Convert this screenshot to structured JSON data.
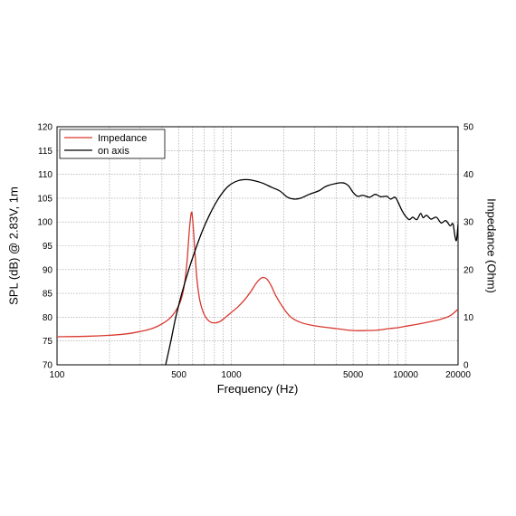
{
  "chart_data": {
    "type": "line",
    "xlabel": "Frequency (Hz)",
    "ylabel_left": "SPL (dB) @ 2.83V, 1m",
    "ylabel_right": "Impedance (Ohm)",
    "x_scale": "log",
    "xlim": [
      100,
      20000
    ],
    "ylim_left": [
      70,
      120
    ],
    "ylim_right": [
      0,
      50
    ],
    "x_ticks": [
      {
        "value": 100,
        "label": "100"
      },
      {
        "value": 500,
        "label": "500"
      },
      {
        "value": 1000,
        "label": "1000"
      },
      {
        "value": 5000,
        "label": "5000"
      },
      {
        "value": 10000,
        "label": "10000"
      },
      {
        "value": 20000,
        "label": "20000"
      }
    ],
    "y_ticks_left": [
      {
        "value": 70,
        "label": "70"
      },
      {
        "value": 75,
        "label": "75"
      },
      {
        "value": 80,
        "label": "80"
      },
      {
        "value": 85,
        "label": "85"
      },
      {
        "value": 90,
        "label": "90"
      },
      {
        "value": 95,
        "label": "95"
      },
      {
        "value": 100,
        "label": "100"
      },
      {
        "value": 105,
        "label": "105"
      },
      {
        "value": 110,
        "label": "110"
      },
      {
        "value": 115,
        "label": "115"
      },
      {
        "value": 120,
        "label": "120"
      }
    ],
    "y_ticks_right": [
      {
        "value": 0,
        "label": "0"
      },
      {
        "value": 10,
        "label": "10"
      },
      {
        "value": 20,
        "label": "20"
      },
      {
        "value": 30,
        "label": "30"
      },
      {
        "value": 40,
        "label": "40"
      },
      {
        "value": 50,
        "label": "50"
      }
    ],
    "grid": true,
    "legend_position": "top-left",
    "series": [
      {
        "name": "Impedance",
        "axis": "right",
        "color": "#d9382f",
        "points": [
          [
            100,
            5.9
          ],
          [
            150,
            6.0
          ],
          [
            200,
            6.2
          ],
          [
            250,
            6.5
          ],
          [
            300,
            7.0
          ],
          [
            350,
            7.6
          ],
          [
            400,
            8.6
          ],
          [
            450,
            10.0
          ],
          [
            500,
            12.5
          ],
          [
            530,
            15.5
          ],
          [
            555,
            21.0
          ],
          [
            575,
            28.5
          ],
          [
            590,
            32.0
          ],
          [
            600,
            30.5
          ],
          [
            615,
            25.0
          ],
          [
            635,
            18.0
          ],
          [
            660,
            13.5
          ],
          [
            700,
            10.5
          ],
          [
            750,
            9.1
          ],
          [
            800,
            8.8
          ],
          [
            850,
            9.0
          ],
          [
            900,
            9.6
          ],
          [
            1000,
            11.0
          ],
          [
            1100,
            12.3
          ],
          [
            1200,
            13.8
          ],
          [
            1300,
            15.5
          ],
          [
            1400,
            17.3
          ],
          [
            1500,
            18.3
          ],
          [
            1600,
            18.0
          ],
          [
            1700,
            16.5
          ],
          [
            1800,
            14.5
          ],
          [
            2000,
            11.8
          ],
          [
            2200,
            10.0
          ],
          [
            2500,
            8.9
          ],
          [
            3000,
            8.2
          ],
          [
            4000,
            7.6
          ],
          [
            5000,
            7.2
          ],
          [
            6000,
            7.2
          ],
          [
            7000,
            7.3
          ],
          [
            8000,
            7.6
          ],
          [
            9000,
            7.8
          ],
          [
            10000,
            8.1
          ],
          [
            12000,
            8.6
          ],
          [
            14000,
            9.1
          ],
          [
            16000,
            9.6
          ],
          [
            18000,
            10.3
          ],
          [
            20000,
            11.7
          ]
        ]
      },
      {
        "name": "on axis",
        "axis": "left",
        "color": "#000000",
        "points": [
          [
            420,
            70
          ],
          [
            450,
            75
          ],
          [
            480,
            80
          ],
          [
            520,
            85
          ],
          [
            570,
            90
          ],
          [
            620,
            94
          ],
          [
            680,
            98
          ],
          [
            750,
            101.5
          ],
          [
            830,
            104.5
          ],
          [
            920,
            106.8
          ],
          [
            1000,
            108
          ],
          [
            1100,
            108.7
          ],
          [
            1200,
            108.9
          ],
          [
            1300,
            108.8
          ],
          [
            1500,
            108.2
          ],
          [
            1700,
            107.3
          ],
          [
            1900,
            106.5
          ],
          [
            2100,
            105.2
          ],
          [
            2300,
            104.8
          ],
          [
            2500,
            105.0
          ],
          [
            2800,
            105.8
          ],
          [
            3200,
            106.6
          ],
          [
            3500,
            107.5
          ],
          [
            4000,
            108.1
          ],
          [
            4400,
            108.2
          ],
          [
            4700,
            107.6
          ],
          [
            5000,
            106.2
          ],
          [
            5300,
            105.4
          ],
          [
            5700,
            105.6
          ],
          [
            6200,
            105.2
          ],
          [
            6700,
            105.8
          ],
          [
            7200,
            105.3
          ],
          [
            7800,
            105.4
          ],
          [
            8200,
            104.8
          ],
          [
            8700,
            105.2
          ],
          [
            9100,
            104.0
          ],
          [
            9500,
            102.5
          ],
          [
            10000,
            101.2
          ],
          [
            10500,
            100.5
          ],
          [
            11000,
            101.0
          ],
          [
            11600,
            100.5
          ],
          [
            12200,
            101.8
          ],
          [
            12600,
            100.9
          ],
          [
            13200,
            101.4
          ],
          [
            14000,
            100.6
          ],
          [
            15000,
            101.0
          ],
          [
            16000,
            99.8
          ],
          [
            17000,
            100.3
          ],
          [
            18000,
            99.2
          ],
          [
            18700,
            99.6
          ],
          [
            19200,
            97.0
          ],
          [
            19600,
            96.2
          ],
          [
            20000,
            99.6
          ]
        ]
      }
    ]
  }
}
